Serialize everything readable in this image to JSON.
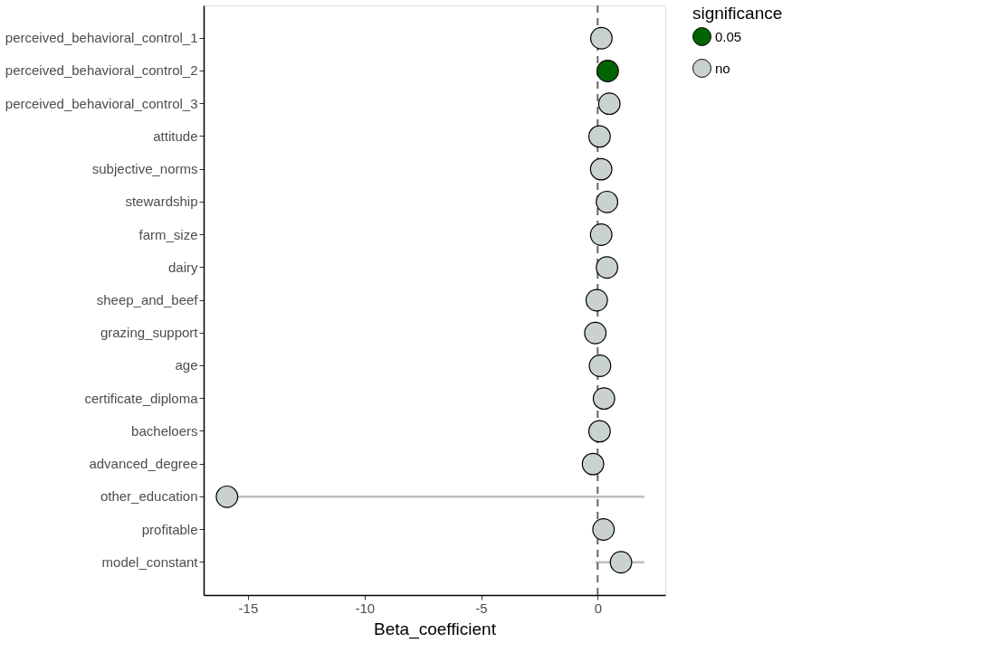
{
  "chart_data": {
    "type": "scatter",
    "orientation": "horizontal",
    "xlabel": "Beta_coefficient",
    "legend_title": "significance",
    "legend": "right",
    "grid": false,
    "marker": "circle",
    "categories": [
      "perceived_behavioral_control_1",
      "perceived_behavioral_control_2",
      "perceived_behavioral_control_3",
      "attitude",
      "subjective_norms",
      "stewardship",
      "farm_size",
      "dairy",
      "sheep_and_beef",
      "grazing_support",
      "age",
      "certificate_diploma",
      "bacheloers",
      "advanced_degree",
      "other_education",
      "profitable",
      "model_constant"
    ],
    "xlim": [
      -16.9,
      2.9
    ],
    "xticks": [
      -15,
      -10,
      -5,
      0
    ],
    "series": [
      {
        "name": "0.05",
        "color": "#006400",
        "values": [
          null,
          0.43,
          null,
          null,
          null,
          null,
          null,
          null,
          null,
          null,
          null,
          null,
          null,
          null,
          null,
          null,
          null
        ]
      },
      {
        "name": "no",
        "color": "#c9d1d1",
        "values": [
          0.16,
          null,
          0.5,
          0.08,
          0.15,
          0.4,
          0.15,
          0.4,
          -0.04,
          -0.1,
          0.1,
          0.27,
          0.08,
          -0.2,
          -15.9,
          0.25,
          1.0
        ],
        "errors": [
          null,
          null,
          null,
          null,
          null,
          null,
          null,
          null,
          null,
          null,
          null,
          null,
          null,
          null,
          [
            -15.9,
            2.0
          ],
          null,
          [
            -0.1,
            2.0
          ]
        ]
      }
    ],
    "ref_lines": [
      {
        "axis": "x",
        "value": 0,
        "color": "#666666",
        "line_style": "dashed"
      }
    ]
  }
}
